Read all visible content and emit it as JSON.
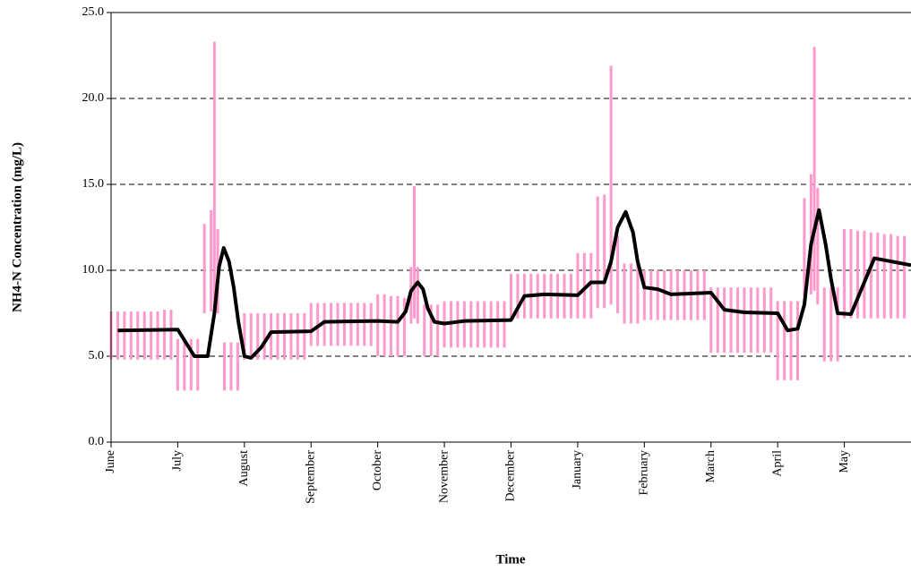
{
  "chart_data": {
    "type": "line",
    "x_label": "Time",
    "y_label": "NH4-N Concentration (mg/L)",
    "xlim": [
      0,
      12
    ],
    "xticks": [
      {
        "value": 0,
        "label": "June"
      },
      {
        "value": 1,
        "label": "July"
      },
      {
        "value": 2,
        "label": "August"
      },
      {
        "value": 3,
        "label": "September"
      },
      {
        "value": 4,
        "label": "October"
      },
      {
        "value": 5,
        "label": "November"
      },
      {
        "value": 6,
        "label": "December"
      },
      {
        "value": 7,
        "label": "January"
      },
      {
        "value": 8,
        "label": "February"
      },
      {
        "value": 9,
        "label": "March"
      },
      {
        "value": 10,
        "label": "April"
      },
      {
        "value": 11,
        "label": "May"
      }
    ],
    "ylim": [
      0,
      25
    ],
    "yticks": [
      {
        "value": 0,
        "label": "0.0"
      },
      {
        "value": 5,
        "label": "5.0"
      },
      {
        "value": 10,
        "label": "10.0"
      },
      {
        "value": 15,
        "label": "15.0"
      },
      {
        "value": 20,
        "label": "20.0"
      },
      {
        "value": 25,
        "label": "25.0"
      }
    ],
    "grid": true,
    "series": [
      {
        "kind": "range",
        "color": "#ff99cc",
        "x": [
          0.0,
          0.1,
          0.2,
          0.3,
          0.4,
          0.5,
          0.6,
          0.7,
          0.8,
          0.9,
          1.0,
          1.1,
          1.2,
          1.3,
          1.4,
          1.5,
          1.55,
          1.6,
          1.7,
          1.8,
          1.9,
          2.0,
          2.1,
          2.2,
          2.3,
          2.4,
          2.5,
          2.6,
          2.7,
          2.8,
          2.9,
          3.0,
          3.1,
          3.2,
          3.3,
          3.4,
          3.5,
          3.6,
          3.7,
          3.8,
          3.9,
          4.0,
          4.1,
          4.2,
          4.3,
          4.4,
          4.5,
          4.55,
          4.6,
          4.7,
          4.8,
          4.9,
          5.0,
          5.1,
          5.2,
          5.3,
          5.4,
          5.5,
          5.6,
          5.7,
          5.8,
          5.9,
          6.0,
          6.1,
          6.2,
          6.3,
          6.4,
          6.5,
          6.6,
          6.7,
          6.8,
          6.9,
          7.0,
          7.1,
          7.2,
          7.3,
          7.4,
          7.5,
          7.6,
          7.7,
          7.8,
          7.9,
          8.0,
          8.1,
          8.2,
          8.3,
          8.4,
          8.5,
          8.6,
          8.7,
          8.8,
          8.9,
          9.0,
          9.1,
          9.2,
          9.3,
          9.4,
          9.5,
          9.6,
          9.7,
          9.8,
          9.9,
          10.0,
          10.1,
          10.2,
          10.3,
          10.4,
          10.5,
          10.55,
          10.6,
          10.7,
          10.8,
          10.9,
          11.0,
          11.1,
          11.2,
          11.3,
          11.4,
          11.5,
          11.6,
          11.7,
          11.8,
          11.9
        ],
        "low": [
          4.8,
          4.8,
          4.8,
          4.8,
          4.8,
          4.8,
          4.8,
          4.8,
          4.8,
          4.8,
          3.0,
          3.0,
          3.0,
          3.0,
          7.5,
          7.6,
          7.8,
          7.5,
          3.0,
          3.0,
          3.0,
          4.8,
          4.8,
          4.8,
          4.8,
          4.8,
          4.8,
          4.8,
          4.8,
          4.8,
          4.8,
          5.6,
          5.6,
          5.6,
          5.6,
          5.6,
          5.6,
          5.6,
          5.6,
          5.6,
          5.6,
          5.0,
          5.0,
          5.0,
          5.0,
          5.0,
          6.9,
          7.2,
          6.9,
          5.0,
          5.0,
          5.0,
          5.5,
          5.5,
          5.5,
          5.5,
          5.5,
          5.5,
          5.5,
          5.5,
          5.5,
          5.5,
          7.2,
          7.2,
          7.2,
          7.2,
          7.2,
          7.2,
          7.2,
          7.2,
          7.2,
          7.2,
          7.2,
          7.2,
          7.2,
          7.8,
          7.8,
          8.0,
          7.5,
          6.9,
          6.9,
          6.9,
          7.1,
          7.1,
          7.1,
          7.1,
          7.1,
          7.1,
          7.1,
          7.1,
          7.1,
          7.1,
          5.2,
          5.2,
          5.2,
          5.2,
          5.2,
          5.2,
          5.2,
          5.2,
          5.2,
          5.2,
          3.6,
          3.6,
          3.6,
          3.6,
          8.5,
          8.6,
          8.8,
          8.0,
          4.7,
          4.7,
          4.7,
          7.2,
          7.2,
          7.2,
          7.2,
          7.2,
          7.2,
          7.2,
          7.2,
          7.2,
          7.2
        ],
        "high": [
          7.6,
          7.6,
          7.6,
          7.6,
          7.6,
          7.6,
          7.6,
          7.6,
          7.7,
          7.7,
          6.0,
          6.0,
          6.0,
          6.0,
          12.7,
          13.5,
          23.3,
          12.4,
          5.8,
          5.8,
          5.8,
          7.5,
          7.5,
          7.5,
          7.5,
          7.5,
          7.5,
          7.5,
          7.5,
          7.5,
          7.5,
          8.1,
          8.1,
          8.1,
          8.1,
          8.1,
          8.1,
          8.1,
          8.1,
          8.1,
          8.1,
          8.6,
          8.6,
          8.5,
          8.5,
          8.4,
          10.2,
          14.9,
          10.2,
          8.0,
          8.0,
          8.0,
          8.2,
          8.2,
          8.2,
          8.2,
          8.2,
          8.2,
          8.2,
          8.2,
          8.2,
          8.2,
          9.8,
          9.8,
          9.8,
          9.8,
          9.8,
          9.8,
          9.8,
          9.8,
          9.8,
          9.8,
          11.0,
          11.0,
          11.0,
          14.3,
          14.4,
          21.9,
          12.0,
          10.4,
          10.4,
          10.4,
          10.0,
          10.0,
          10.0,
          10.0,
          10.0,
          10.0,
          10.0,
          10.0,
          10.0,
          10.0,
          9.0,
          9.0,
          9.0,
          9.0,
          9.0,
          9.0,
          9.0,
          9.0,
          9.0,
          9.0,
          8.2,
          8.2,
          8.2,
          8.2,
          14.2,
          15.6,
          23.0,
          14.8,
          9.0,
          9.0,
          9.0,
          12.4,
          12.4,
          12.3,
          12.3,
          12.2,
          12.2,
          12.1,
          12.1,
          12.0,
          12.0
        ]
      },
      {
        "kind": "line",
        "color": "#000000",
        "x": [
          0.1,
          1.0,
          1.25,
          1.45,
          1.55,
          1.62,
          1.69,
          1.77,
          1.84,
          1.91,
          2.0,
          2.1,
          2.25,
          2.4,
          3.0,
          3.2,
          4.0,
          4.3,
          4.42,
          4.5,
          4.6,
          4.68,
          4.75,
          4.85,
          5.0,
          5.3,
          6.0,
          6.2,
          6.5,
          7.0,
          7.2,
          7.4,
          7.5,
          7.6,
          7.72,
          7.83,
          7.9,
          8.0,
          8.2,
          8.4,
          9.0,
          9.2,
          9.5,
          10.0,
          10.15,
          10.3,
          10.4,
          10.5,
          10.62,
          10.72,
          10.8,
          10.9,
          11.1,
          11.45,
          12.0
        ],
        "values": [
          6.5,
          6.55,
          5.0,
          5.0,
          7.5,
          10.2,
          11.3,
          10.5,
          9.0,
          7.0,
          5.0,
          4.9,
          5.5,
          6.4,
          6.45,
          7.0,
          7.05,
          7.0,
          7.6,
          8.8,
          9.3,
          8.9,
          7.8,
          7.0,
          6.9,
          7.05,
          7.1,
          8.5,
          8.6,
          8.55,
          9.3,
          9.3,
          10.5,
          12.5,
          13.4,
          12.2,
          10.5,
          9.0,
          8.9,
          8.6,
          8.7,
          7.7,
          7.55,
          7.5,
          6.5,
          6.6,
          8.0,
          11.5,
          13.5,
          11.5,
          9.5,
          7.5,
          7.45,
          10.7,
          10.3
        ]
      }
    ]
  }
}
